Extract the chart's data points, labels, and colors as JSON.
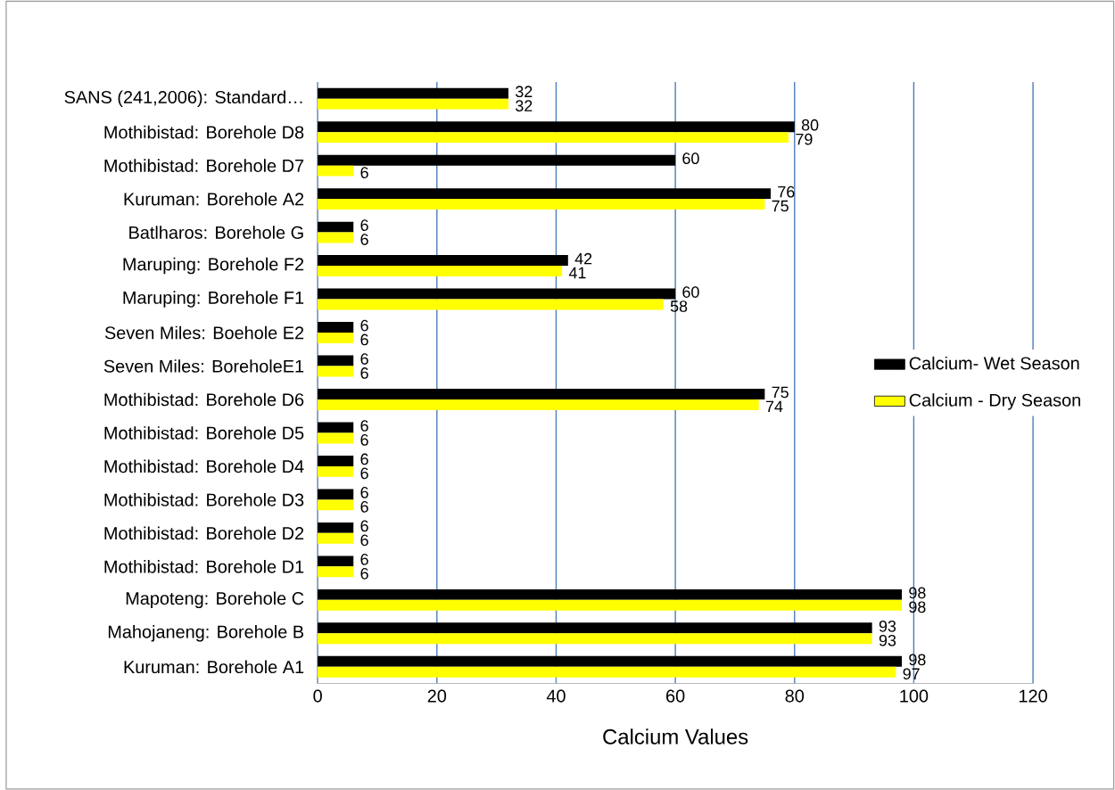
{
  "chart_data": {
    "type": "bar",
    "orientation": "horizontal",
    "xlabel": "Calcium Values",
    "categories": [
      "SANS (241,2006): Standard…",
      "Mothibistad: Borehole D8",
      "Mothibistad: Borehole D7",
      "Kuruman: Borehole A2",
      "Batlharos: Borehole G",
      "Maruping: Borehole F2",
      "Maruping: Borehole F1",
      "Seven Miles: Boehole E2",
      "Seven Miles: BoreholeE1",
      "Mothibistad: Borehole D6",
      "Mothibistad: Borehole D5",
      "Mothibistad: Borehole D4",
      "Mothibistad: Borehole D3",
      "Mothibistad: Borehole D2",
      "Mothibistad: Borehole D1",
      "Mapoteng: Borehole C",
      "Mahojaneng: Borehole B",
      "Kuruman: Borehole A1"
    ],
    "series": [
      {
        "name": "Calcium- Wet Season",
        "color": "#000000",
        "values": [
          32,
          80,
          60,
          76,
          6,
          42,
          60,
          6,
          6,
          75,
          6,
          6,
          6,
          6,
          6,
          98,
          93,
          98
        ]
      },
      {
        "name": "Calcium - Dry Season",
        "color": "#ffff00",
        "values": [
          32,
          79,
          6,
          75,
          6,
          41,
          58,
          6,
          6,
          74,
          6,
          6,
          6,
          6,
          6,
          98,
          93,
          97
        ]
      }
    ],
    "xlim": [
      0,
      120
    ],
    "xticks": [
      0,
      20,
      40,
      60,
      80,
      100,
      120
    ],
    "grid": "x",
    "legend": "right",
    "data_labels": true
  }
}
